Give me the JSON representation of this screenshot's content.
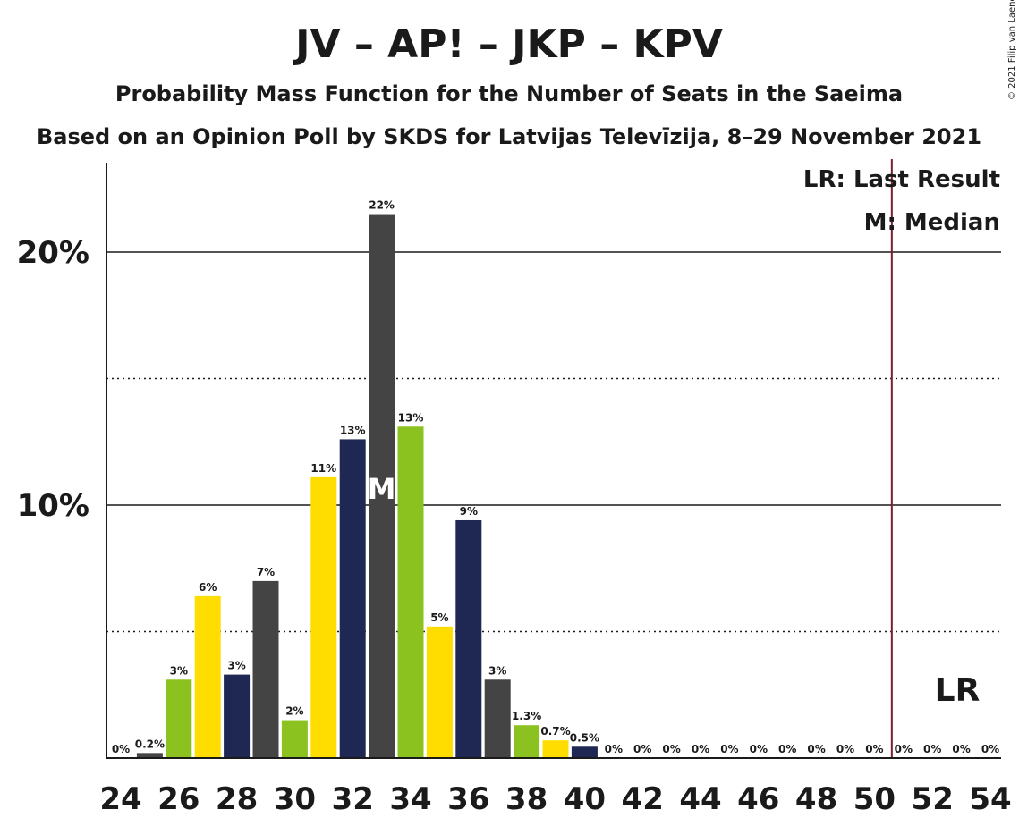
{
  "chart_data": {
    "type": "bar",
    "title": "JV – AP! – JKP – KPV",
    "subtitle1": "Probability Mass Function for the Number of Seats in the Saeima",
    "subtitle2": "Based on an Opinion Poll by SKDS for Latvijas Televīzija, 8–29 November 2021",
    "copyright": "© 2021 Filip van Laenen",
    "x": [
      24,
      25,
      26,
      27,
      28,
      29,
      30,
      31,
      32,
      33,
      34,
      35,
      36,
      37,
      38,
      39,
      40,
      41,
      42,
      43,
      44,
      45,
      46,
      47,
      48,
      49,
      50,
      51,
      52,
      53,
      54
    ],
    "values": [
      0,
      0.2,
      3.1,
      6.4,
      3.3,
      7.0,
      1.5,
      11.1,
      12.6,
      21.5,
      13.1,
      5.2,
      9.4,
      3.1,
      1.3,
      0.7,
      0.45,
      0,
      0,
      0,
      0,
      0,
      0,
      0,
      0,
      0,
      0,
      0,
      0,
      0,
      0
    ],
    "data_labels": [
      "0%",
      "0.2%",
      "3%",
      "6%",
      "3%",
      "7%",
      "2%",
      "11%",
      "13%",
      "22%",
      "13%",
      "5%",
      "9%",
      "3%",
      "1.3%",
      "0.7%",
      "0.5%",
      "0%",
      "0%",
      "0%",
      "0%",
      "0%",
      "0%",
      "0%",
      "0%",
      "0%",
      "0%",
      "0%",
      "0%",
      "0%",
      "0%"
    ],
    "x_tick_labels": [
      "24",
      "26",
      "28",
      "30",
      "32",
      "34",
      "36",
      "38",
      "40",
      "42",
      "44",
      "46",
      "48",
      "50",
      "52",
      "54"
    ],
    "y_tick_labels": [
      "10%",
      "20%"
    ],
    "ylim": [
      0,
      23.5
    ],
    "grid": {
      "solid": [
        10,
        20
      ],
      "dotted": [
        5,
        15
      ]
    },
    "bar_colors": [
      "#1f2753",
      "#444444",
      "#8cc21f",
      "#ffdd00"
    ],
    "median": {
      "seats": 33,
      "label": "M"
    },
    "last_result": {
      "seats": 50.6,
      "label": "LR",
      "color": "#7a1f2b"
    },
    "legend": {
      "lr": "LR: Last Result",
      "m": "M: Median"
    }
  }
}
